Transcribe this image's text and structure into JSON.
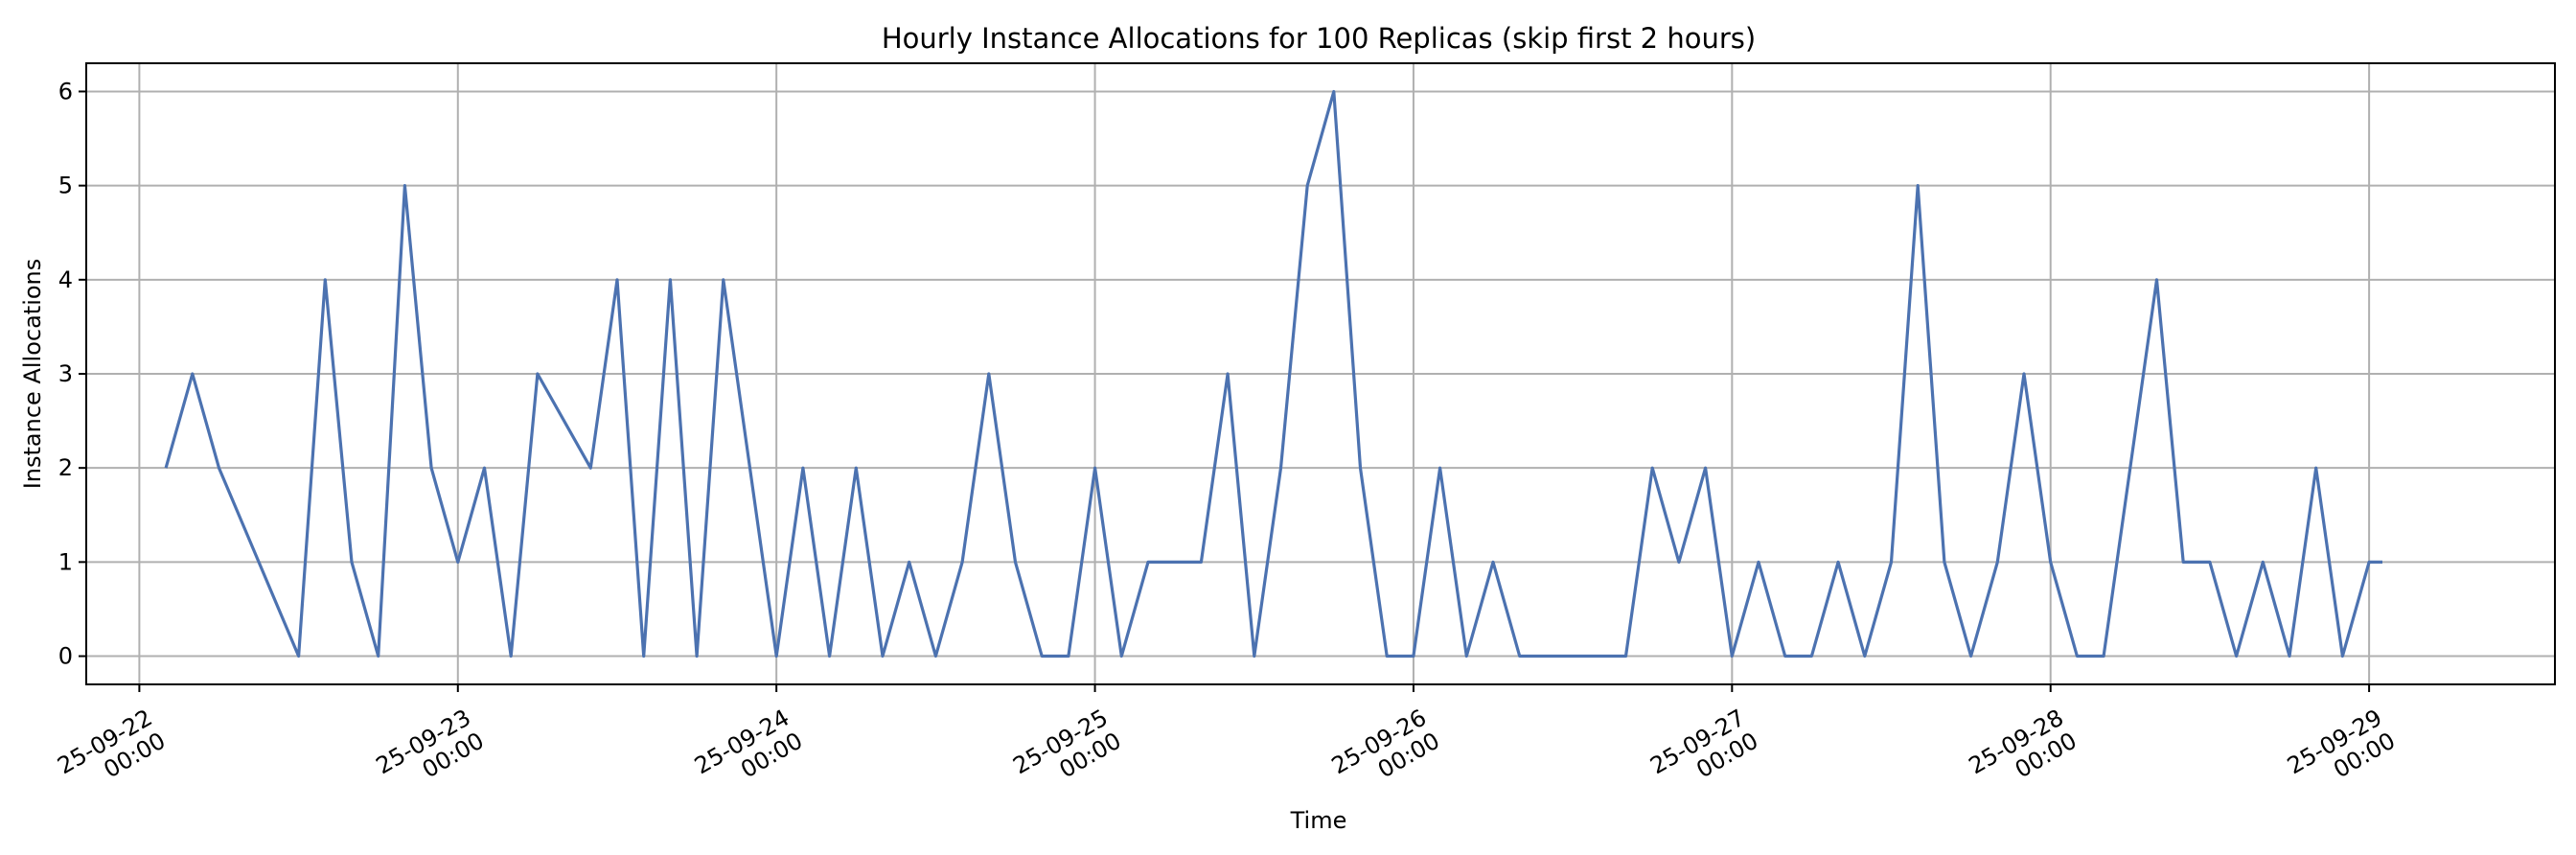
{
  "chart_data": {
    "type": "line",
    "title": "Hourly Instance Allocations for 100 Replicas (skip first 2 hours)",
    "xlabel": "Time",
    "ylabel": "Instance Allocations",
    "x_type": "datetime",
    "xlim": [
      "2025-09-21T20:00",
      "2025-09-29T14:00"
    ],
    "ylim": [
      -0.3,
      6.3
    ],
    "grid": true,
    "line_color": "#4c72b0",
    "x_ticks": [
      {
        "value": "2025-09-22T00:00",
        "line1": "25-09-22",
        "line2": "00:00"
      },
      {
        "value": "2025-09-23T00:00",
        "line1": "25-09-23",
        "line2": "00:00"
      },
      {
        "value": "2025-09-24T00:00",
        "line1": "25-09-24",
        "line2": "00:00"
      },
      {
        "value": "2025-09-25T00:00",
        "line1": "25-09-25",
        "line2": "00:00"
      },
      {
        "value": "2025-09-26T00:00",
        "line1": "25-09-26",
        "line2": "00:00"
      },
      {
        "value": "2025-09-27T00:00",
        "line1": "25-09-27",
        "line2": "00:00"
      },
      {
        "value": "2025-09-28T00:00",
        "line1": "25-09-28",
        "line2": "00:00"
      },
      {
        "value": "2025-09-29T00:00",
        "line1": "25-09-29",
        "line2": "00:00"
      }
    ],
    "y_ticks": [
      0,
      1,
      2,
      3,
      4,
      5,
      6
    ],
    "series": [
      {
        "x": [
          "2025-09-22T02:00",
          "2025-09-22T04:00",
          "2025-09-22T06:00",
          "2025-09-22T12:00",
          "2025-09-22T14:00",
          "2025-09-22T16:00",
          "2025-09-22T18:00",
          "2025-09-22T20:00",
          "2025-09-22T22:00",
          "2025-09-23T00:00",
          "2025-09-23T02:00",
          "2025-09-23T04:00",
          "2025-09-23T06:00",
          "2025-09-23T10:00",
          "2025-09-23T12:00",
          "2025-09-23T14:00",
          "2025-09-23T16:00",
          "2025-09-23T18:00",
          "2025-09-23T20:00",
          "2025-09-23T22:00",
          "2025-09-24T00:00",
          "2025-09-24T02:00",
          "2025-09-24T04:00",
          "2025-09-24T06:00",
          "2025-09-24T08:00",
          "2025-09-24T10:00",
          "2025-09-24T12:00",
          "2025-09-24T14:00",
          "2025-09-24T16:00",
          "2025-09-24T18:00",
          "2025-09-24T20:00",
          "2025-09-24T22:00",
          "2025-09-25T00:00",
          "2025-09-25T02:00",
          "2025-09-25T04:00",
          "2025-09-25T06:00",
          "2025-09-25T08:00",
          "2025-09-25T10:00",
          "2025-09-25T12:00",
          "2025-09-25T14:00",
          "2025-09-25T16:00",
          "2025-09-25T18:00",
          "2025-09-25T20:00",
          "2025-09-25T22:00",
          "2025-09-26T00:00",
          "2025-09-26T02:00",
          "2025-09-26T04:00",
          "2025-09-26T06:00",
          "2025-09-26T08:00",
          "2025-09-26T10:00",
          "2025-09-26T12:00",
          "2025-09-26T14:00",
          "2025-09-26T16:00",
          "2025-09-26T18:00",
          "2025-09-26T20:00",
          "2025-09-26T22:00",
          "2025-09-27T00:00",
          "2025-09-27T02:00",
          "2025-09-27T04:00",
          "2025-09-27T06:00",
          "2025-09-27T08:00",
          "2025-09-27T10:00",
          "2025-09-27T12:00",
          "2025-09-27T14:00",
          "2025-09-27T16:00",
          "2025-09-27T18:00",
          "2025-09-27T20:00",
          "2025-09-27T22:00",
          "2025-09-28T00:00",
          "2025-09-28T02:00",
          "2025-09-28T04:00",
          "2025-09-28T06:00",
          "2025-09-28T08:00",
          "2025-09-28T10:00",
          "2025-09-28T12:00",
          "2025-09-28T14:00",
          "2025-09-28T16:00",
          "2025-09-28T18:00",
          "2025-09-28T20:00",
          "2025-09-28T22:00",
          "2025-09-29T00:00",
          "2025-09-29T01:00"
        ],
        "values": [
          2,
          3,
          2,
          0,
          4,
          1,
          0,
          5,
          2,
          1,
          2,
          0,
          3,
          2,
          4,
          0,
          4,
          0,
          4,
          2,
          0,
          2,
          0,
          2,
          0,
          1,
          0,
          1,
          3,
          1,
          0,
          0,
          2,
          0,
          1,
          1,
          1,
          3,
          0,
          2,
          5,
          6,
          2,
          0,
          0,
          2,
          0,
          1,
          0,
          0,
          0,
          0,
          0,
          2,
          1,
          2,
          0,
          1,
          0,
          0,
          1,
          0,
          1,
          5,
          1,
          0,
          1,
          3,
          1,
          0,
          0,
          2,
          4,
          1,
          1,
          0,
          1,
          0,
          2,
          0,
          1,
          1
        ]
      }
    ]
  }
}
